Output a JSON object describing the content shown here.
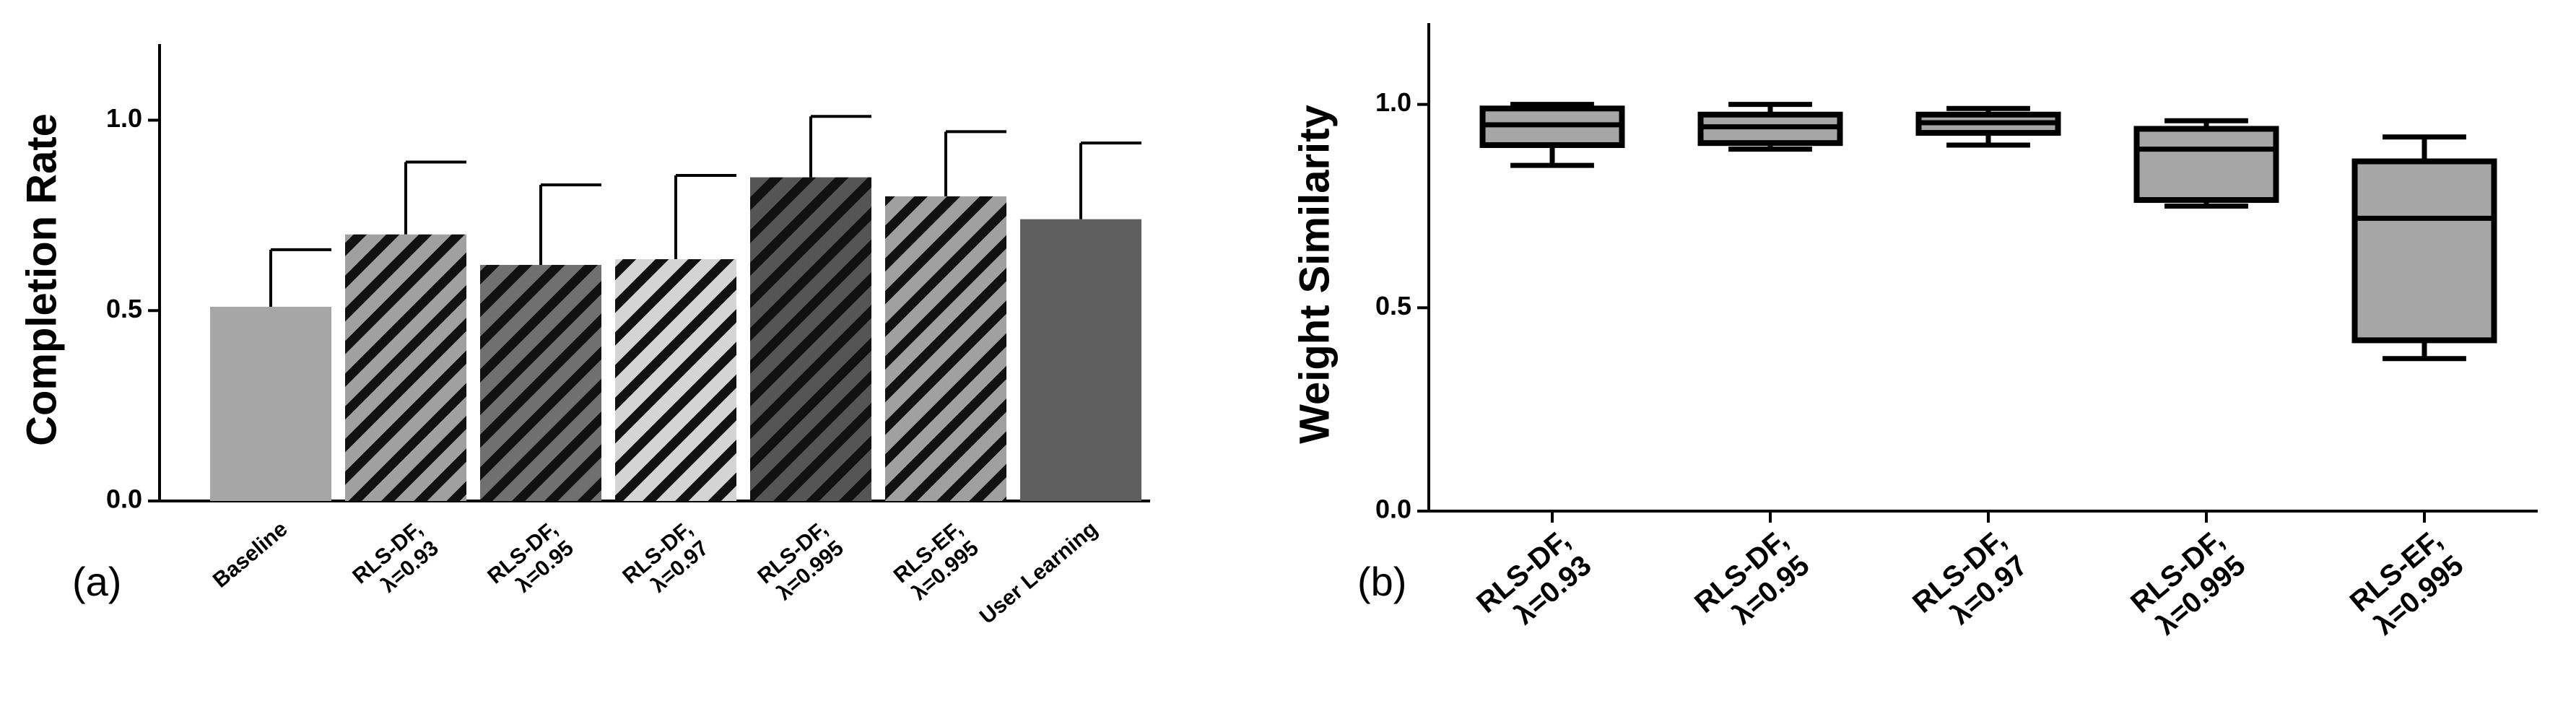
{
  "chart_data": [
    {
      "type": "bar",
      "panel_label": "(a)",
      "y_label": "Completion Rate",
      "categories": [
        "Baseline",
        "RLS-DF,\nλ=0.93",
        "RLS-DF,\nλ=0.95",
        "RLS-DF,\nλ=0.97",
        "RLS-DF,\nλ=0.995",
        "RLS-EF,\nλ=0.995",
        "User Learning"
      ],
      "values": [
        0.51,
        0.7,
        0.62,
        0.635,
        0.85,
        0.8,
        0.74
      ],
      "errors": [
        0.15,
        0.19,
        0.21,
        0.22,
        0.16,
        0.17,
        0.2
      ],
      "colors": [
        "#a6a6a6",
        "#a0a0a0",
        "#707070",
        "#d4d4d4",
        "#555555",
        "#a0a0a0",
        "#5f5f5f"
      ],
      "hatched": [
        false,
        true,
        true,
        true,
        true,
        true,
        false
      ],
      "ylim": [
        0,
        1.2
      ],
      "yticks": [
        {
          "value": 0,
          "label": "0.0"
        },
        {
          "value": 0.5,
          "label": "0.5"
        },
        {
          "value": 1,
          "label": "1.0"
        }
      ]
    },
    {
      "type": "box",
      "panel_label": "(b)",
      "y_label": "Weight Similarity",
      "categories": [
        "RLS-DF,\nλ=0.93",
        "RLS-DF,\nλ=0.95",
        "RLS-DF,\nλ=0.97",
        "RLS-DF,\nλ=0.995",
        "RLS-EF,\nλ=0.995"
      ],
      "min": [
        0.85,
        0.89,
        0.9,
        0.75,
        0.375
      ],
      "q1": [
        0.9,
        0.905,
        0.93,
        0.765,
        0.42
      ],
      "median": [
        0.95,
        0.945,
        0.955,
        0.89,
        0.72
      ],
      "q3": [
        0.99,
        0.975,
        0.975,
        0.94,
        0.86
      ],
      "max": [
        1.0,
        1.0,
        0.99,
        0.96,
        0.92
      ],
      "color": "#a6a6a6",
      "ylim": [
        0,
        1.2
      ],
      "yticks": [
        {
          "value": 0,
          "label": "0.0"
        },
        {
          "value": 0.5,
          "label": "0.5"
        },
        {
          "value": 1,
          "label": "1.0"
        }
      ]
    }
  ]
}
